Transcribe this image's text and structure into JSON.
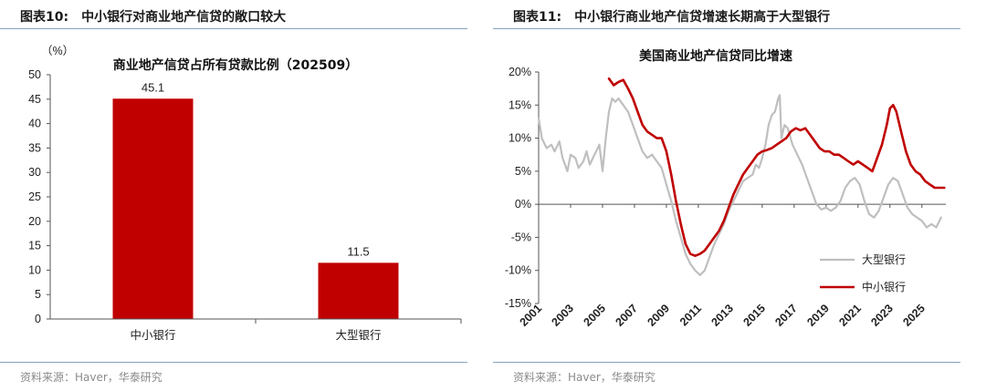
{
  "left": {
    "header_num": "图表10:",
    "header_text": "中小银行对商业地产信贷的敞口较大",
    "source": "资料来源：Haver，华泰研究"
  },
  "right": {
    "header_num": "图表11:",
    "header_text": "中小银行商业地产信贷增速长期高于大型银行",
    "source": "资料来源：Haver，华泰研究"
  },
  "chart_data": [
    {
      "type": "bar",
      "title": "商业地产信贷占所有贷款比例（202509）",
      "unit_label": "（%）",
      "categories": [
        "中小银行",
        "大型银行"
      ],
      "values": [
        45.1,
        11.5
      ],
      "value_labels": [
        "45.1",
        "11.5"
      ],
      "ylim": [
        0,
        50
      ],
      "yticks": [
        0,
        5,
        10,
        15,
        20,
        25,
        30,
        35,
        40,
        45,
        50
      ],
      "bar_color": "#c00000",
      "grid": false
    },
    {
      "type": "line",
      "title": "美国商业地产信贷同比增速",
      "ylim": [
        -15,
        20
      ],
      "yticks": [
        -15,
        -10,
        -5,
        0,
        5,
        10,
        15,
        20
      ],
      "ytick_labels": [
        "-15%",
        "-10%",
        "-5%",
        "0%",
        "5%",
        "10%",
        "15%",
        "20%"
      ],
      "xlim": [
        2001,
        2026.5
      ],
      "xticks": [
        "2001",
        "2003",
        "2005",
        "2007",
        "2009",
        "2011",
        "2013",
        "2015",
        "2017",
        "2019",
        "2021",
        "2023",
        "2025"
      ],
      "legend_position": "bottom-right",
      "grid": false,
      "series": [
        {
          "name": "大型银行",
          "color": "#bfbfbf",
          "points": [
            [
              2001.0,
              13.0
            ],
            [
              2001.2,
              10.0
            ],
            [
              2001.5,
              8.5
            ],
            [
              2001.8,
              9.0
            ],
            [
              2002.0,
              8.0
            ],
            [
              2002.3,
              9.5
            ],
            [
              2002.5,
              7.0
            ],
            [
              2002.8,
              5.0
            ],
            [
              2003.0,
              7.5
            ],
            [
              2003.3,
              7.0
            ],
            [
              2003.5,
              5.5
            ],
            [
              2003.8,
              6.5
            ],
            [
              2004.0,
              8.0
            ],
            [
              2004.2,
              6.0
            ],
            [
              2004.5,
              7.5
            ],
            [
              2004.8,
              9.0
            ],
            [
              2005.0,
              5.0
            ],
            [
              2005.2,
              10.0
            ],
            [
              2005.4,
              14.0
            ],
            [
              2005.6,
              16.0
            ],
            [
              2005.8,
              15.5
            ],
            [
              2006.0,
              16.0
            ],
            [
              2006.3,
              15.0
            ],
            [
              2006.6,
              14.0
            ],
            [
              2006.9,
              12.0
            ],
            [
              2007.2,
              10.0
            ],
            [
              2007.5,
              8.0
            ],
            [
              2007.8,
              7.0
            ],
            [
              2008.1,
              7.5
            ],
            [
              2008.4,
              6.5
            ],
            [
              2008.7,
              5.5
            ],
            [
              2009.0,
              3.0
            ],
            [
              2009.3,
              0.5
            ],
            [
              2009.6,
              -2.5
            ],
            [
              2009.9,
              -5.0
            ],
            [
              2010.2,
              -7.5
            ],
            [
              2010.5,
              -9.0
            ],
            [
              2010.8,
              -10.0
            ],
            [
              2011.1,
              -10.7
            ],
            [
              2011.4,
              -10.0
            ],
            [
              2011.7,
              -8.0
            ],
            [
              2012.0,
              -6.0
            ],
            [
              2012.3,
              -4.5
            ],
            [
              2012.6,
              -3.0
            ],
            [
              2012.9,
              -1.0
            ],
            [
              2013.2,
              0.5
            ],
            [
              2013.5,
              2.0
            ],
            [
              2013.8,
              3.5
            ],
            [
              2014.1,
              4.0
            ],
            [
              2014.4,
              4.5
            ],
            [
              2014.6,
              6.0
            ],
            [
              2014.8,
              5.5
            ],
            [
              2015.0,
              7.0
            ],
            [
              2015.2,
              9.0
            ],
            [
              2015.4,
              12.0
            ],
            [
              2015.6,
              13.5
            ],
            [
              2015.8,
              14.0
            ],
            [
              2016.0,
              16.0
            ],
            [
              2016.1,
              16.5
            ],
            [
              2016.2,
              10.0
            ],
            [
              2016.4,
              12.0
            ],
            [
              2016.6,
              11.5
            ],
            [
              2016.9,
              9.0
            ],
            [
              2017.2,
              7.5
            ],
            [
              2017.5,
              6.0
            ],
            [
              2017.8,
              4.0
            ],
            [
              2018.1,
              2.0
            ],
            [
              2018.4,
              0.0
            ],
            [
              2018.7,
              -0.8
            ],
            [
              2019.0,
              -0.5
            ],
            [
              2019.3,
              -1.0
            ],
            [
              2019.6,
              -0.5
            ],
            [
              2019.9,
              0.5
            ],
            [
              2020.2,
              2.5
            ],
            [
              2020.5,
              3.5
            ],
            [
              2020.8,
              4.0
            ],
            [
              2021.1,
              3.0
            ],
            [
              2021.4,
              0.5
            ],
            [
              2021.7,
              -1.5
            ],
            [
              2022.0,
              -2.0
            ],
            [
              2022.3,
              -1.0
            ],
            [
              2022.6,
              1.0
            ],
            [
              2022.9,
              3.0
            ],
            [
              2023.2,
              4.0
            ],
            [
              2023.5,
              3.5
            ],
            [
              2023.8,
              1.5
            ],
            [
              2024.1,
              -0.5
            ],
            [
              2024.4,
              -1.5
            ],
            [
              2024.7,
              -2.0
            ],
            [
              2025.0,
              -2.5
            ],
            [
              2025.3,
              -3.5
            ],
            [
              2025.6,
              -3.0
            ],
            [
              2025.9,
              -3.5
            ],
            [
              2026.2,
              -2.0
            ]
          ]
        },
        {
          "name": "中小银行",
          "color": "#c00000",
          "points": [
            [
              2005.4,
              19.0
            ],
            [
              2005.7,
              18.0
            ],
            [
              2006.0,
              18.5
            ],
            [
              2006.3,
              18.8
            ],
            [
              2006.6,
              17.5
            ],
            [
              2006.9,
              16.0
            ],
            [
              2007.2,
              14.0
            ],
            [
              2007.5,
              12.0
            ],
            [
              2007.8,
              11.0
            ],
            [
              2008.1,
              10.5
            ],
            [
              2008.4,
              10.0
            ],
            [
              2008.7,
              10.0
            ],
            [
              2009.0,
              8.0
            ],
            [
              2009.3,
              4.5
            ],
            [
              2009.6,
              0.5
            ],
            [
              2009.9,
              -3.0
            ],
            [
              2010.2,
              -6.0
            ],
            [
              2010.5,
              -7.5
            ],
            [
              2010.8,
              -7.8
            ],
            [
              2011.1,
              -7.5
            ],
            [
              2011.4,
              -7.0
            ],
            [
              2011.7,
              -6.0
            ],
            [
              2012.0,
              -5.0
            ],
            [
              2012.3,
              -4.0
            ],
            [
              2012.6,
              -2.5
            ],
            [
              2012.9,
              -0.5
            ],
            [
              2013.2,
              1.5
            ],
            [
              2013.5,
              3.0
            ],
            [
              2013.8,
              4.5
            ],
            [
              2014.1,
              5.5
            ],
            [
              2014.4,
              6.5
            ],
            [
              2014.7,
              7.5
            ],
            [
              2015.0,
              8.0
            ],
            [
              2015.3,
              8.2
            ],
            [
              2015.6,
              8.5
            ],
            [
              2015.9,
              9.0
            ],
            [
              2016.2,
              9.5
            ],
            [
              2016.5,
              10.0
            ],
            [
              2016.8,
              11.0
            ],
            [
              2017.1,
              11.5
            ],
            [
              2017.4,
              11.2
            ],
            [
              2017.7,
              11.5
            ],
            [
              2018.0,
              10.5
            ],
            [
              2018.3,
              9.5
            ],
            [
              2018.6,
              8.5
            ],
            [
              2018.9,
              8.0
            ],
            [
              2019.2,
              8.0
            ],
            [
              2019.5,
              7.5
            ],
            [
              2019.8,
              7.5
            ],
            [
              2020.1,
              7.0
            ],
            [
              2020.4,
              6.5
            ],
            [
              2020.7,
              6.0
            ],
            [
              2021.0,
              6.5
            ],
            [
              2021.3,
              6.0
            ],
            [
              2021.6,
              5.5
            ],
            [
              2021.9,
              5.0
            ],
            [
              2022.2,
              7.0
            ],
            [
              2022.5,
              9.0
            ],
            [
              2022.8,
              12.0
            ],
            [
              2023.0,
              14.5
            ],
            [
              2023.2,
              15.0
            ],
            [
              2023.4,
              14.0
            ],
            [
              2023.7,
              11.0
            ],
            [
              2024.0,
              8.0
            ],
            [
              2024.3,
              6.0
            ],
            [
              2024.6,
              5.0
            ],
            [
              2024.9,
              4.5
            ],
            [
              2025.2,
              3.5
            ],
            [
              2025.5,
              3.0
            ],
            [
              2025.8,
              2.5
            ],
            [
              2026.1,
              2.5
            ],
            [
              2026.4,
              2.5
            ]
          ]
        }
      ]
    }
  ]
}
